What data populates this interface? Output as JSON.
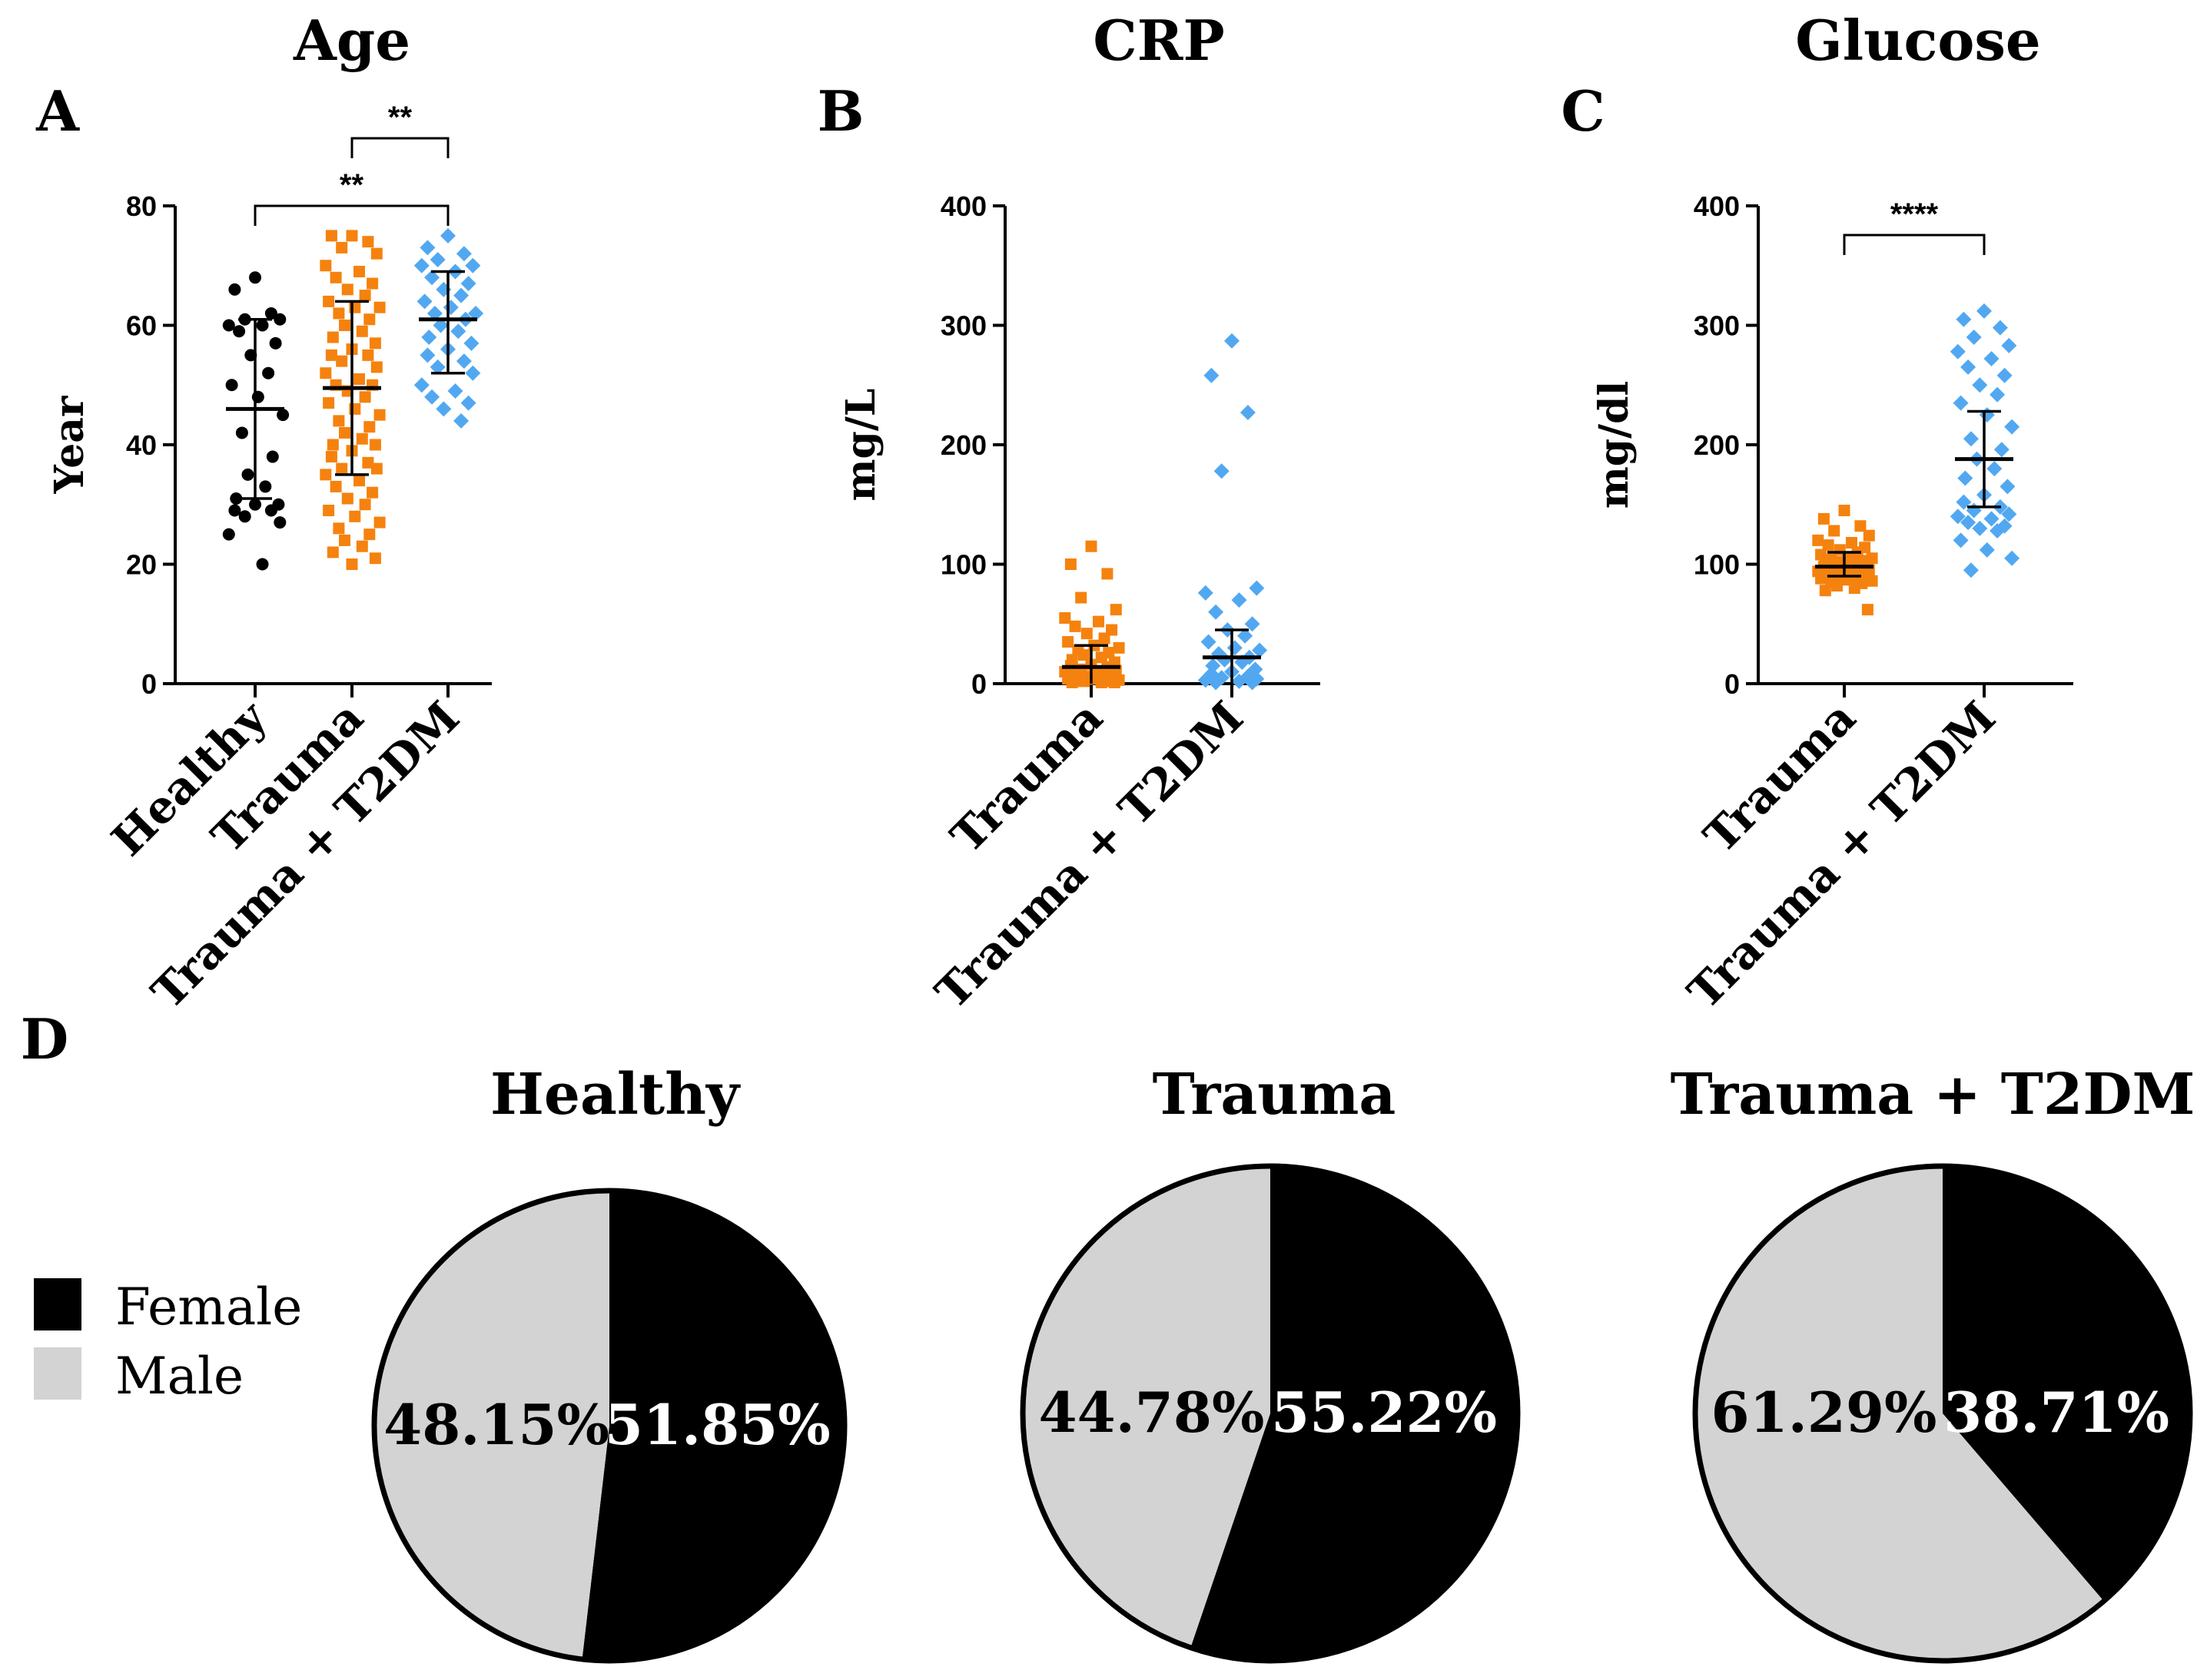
{
  "colors": {
    "healthy": "#000000",
    "trauma": "#f5820e",
    "t2dm": "#52a8f0",
    "female": "#000000",
    "male": "#d3d3d3"
  },
  "chart_data": [
    {
      "id": "A",
      "type": "scatter",
      "letter": "A",
      "title": "Age",
      "ylabel": "Year",
      "ylim": [
        0,
        80
      ],
      "yticks": [
        0,
        20,
        40,
        60,
        80
      ],
      "categories": [
        "Healthy",
        "Trauma",
        "Trauma + T2DM"
      ],
      "series": [
        {
          "name": "Healthy",
          "color_key": "healthy",
          "marker": "circle",
          "mean": 46,
          "sd_low": 31,
          "sd_high": 61,
          "values": [
            68,
            66,
            62,
            61,
            61,
            60,
            60,
            59,
            57,
            55,
            52,
            50,
            48,
            45,
            42,
            38,
            35,
            33,
            31,
            30,
            30,
            29,
            29,
            28,
            27,
            25,
            20
          ]
        },
        {
          "name": "Trauma",
          "color_key": "trauma",
          "marker": "square",
          "mean": 49.5,
          "sd_low": 35,
          "sd_high": 64,
          "values": [
            75,
            75,
            74,
            73,
            72,
            70,
            69,
            68,
            67,
            66,
            65,
            64,
            63,
            63,
            62,
            61,
            60,
            59,
            58,
            57,
            56,
            55,
            55,
            54,
            53,
            52,
            51,
            50,
            50,
            49,
            48,
            47,
            46,
            45,
            44,
            43,
            42,
            41,
            40,
            40,
            39,
            38,
            37,
            36,
            36,
            35,
            34,
            33,
            32,
            31,
            30,
            29,
            28,
            27,
            26,
            25,
            24,
            23,
            22,
            21,
            20
          ]
        },
        {
          "name": "Trauma + T2DM",
          "color_key": "t2dm",
          "marker": "diamond",
          "mean": 61,
          "sd_low": 52,
          "sd_high": 69,
          "values": [
            75,
            73,
            72,
            71,
            70,
            70,
            69,
            68,
            67,
            66,
            65,
            64,
            63,
            62,
            62,
            61,
            60,
            59,
            58,
            57,
            56,
            55,
            54,
            53,
            52,
            50,
            49,
            48,
            47,
            46,
            44
          ]
        }
      ],
      "significance": [
        {
          "from": 1,
          "to": 2,
          "label": "**",
          "level": "upper"
        },
        {
          "from": 0,
          "to": 2,
          "label": "**",
          "level": "lower"
        }
      ]
    },
    {
      "id": "B",
      "type": "scatter",
      "letter": "B",
      "title": "CRP",
      "ylabel": "mg/L",
      "ylim": [
        0,
        400
      ],
      "yticks": [
        0,
        100,
        200,
        300,
        400
      ],
      "categories": [
        "Trauma",
        "Trauma + T2DM"
      ],
      "series": [
        {
          "name": "Trauma",
          "color_key": "trauma",
          "marker": "square",
          "mean": 14,
          "sd_low": 0,
          "sd_high": 32,
          "values": [
            115,
            100,
            92,
            72,
            62,
            55,
            52,
            48,
            45,
            42,
            38,
            35,
            32,
            30,
            28,
            26,
            24,
            22,
            20,
            18,
            16,
            15,
            14,
            12,
            11,
            10,
            9,
            8,
            7,
            6,
            5,
            4,
            4,
            3,
            3,
            2,
            2,
            1,
            1,
            1
          ]
        },
        {
          "name": "Trauma + T2DM",
          "color_key": "t2dm",
          "marker": "diamond",
          "mean": 22,
          "sd_low": 0,
          "sd_high": 45,
          "values": [
            287,
            258,
            227,
            178,
            80,
            76,
            70,
            60,
            50,
            45,
            40,
            35,
            30,
            28,
            25,
            22,
            20,
            18,
            15,
            12,
            10,
            8,
            6,
            5,
            4,
            3,
            2,
            1,
            1
          ]
        }
      ],
      "significance": []
    },
    {
      "id": "C",
      "type": "scatter",
      "letter": "C",
      "title": "Glucose",
      "ylabel": "mg/dl",
      "ylim": [
        0,
        400
      ],
      "yticks": [
        0,
        100,
        200,
        300,
        400
      ],
      "categories": [
        "Trauma",
        "Trauma + T2DM"
      ],
      "series": [
        {
          "name": "Trauma",
          "color_key": "trauma",
          "marker": "square",
          "mean": 98,
          "sd_low": 90,
          "sd_high": 110,
          "values": [
            145,
            138,
            132,
            128,
            124,
            120,
            118,
            116,
            114,
            112,
            110,
            108,
            106,
            105,
            104,
            103,
            102,
            101,
            100,
            100,
            99,
            98,
            97,
            96,
            95,
            94,
            93,
            92,
            91,
            90,
            89,
            88,
            87,
            86,
            85,
            84,
            82,
            80,
            78,
            62
          ]
        },
        {
          "name": "Trauma + T2DM",
          "color_key": "t2dm",
          "marker": "diamond",
          "mean": 188,
          "sd_low": 148,
          "sd_high": 228,
          "values": [
            312,
            305,
            298,
            290,
            283,
            278,
            272,
            265,
            258,
            250,
            242,
            235,
            225,
            215,
            205,
            196,
            188,
            180,
            172,
            165,
            158,
            152,
            148,
            145,
            142,
            140,
            138,
            135,
            132,
            130,
            128,
            120,
            112,
            105,
            95
          ]
        }
      ],
      "significance": [
        {
          "from": 0,
          "to": 1,
          "label": "****",
          "level": "upper"
        }
      ]
    },
    {
      "id": "D",
      "type": "pie",
      "letter": "D",
      "legend": [
        {
          "label": "Female",
          "color_key": "female"
        },
        {
          "label": "Male",
          "color_key": "male"
        }
      ],
      "pies": [
        {
          "title": "Healthy",
          "female": 51.85,
          "male": 48.15,
          "female_label": "51.85%",
          "male_label": "48.15%"
        },
        {
          "title": "Trauma",
          "female": 55.22,
          "male": 44.78,
          "female_label": "55.22%",
          "male_label": "44.78%"
        },
        {
          "title": "Trauma + T2DM",
          "female": 38.71,
          "male": 61.29,
          "female_label": "38.71%",
          "male_label": "61.29%"
        }
      ]
    }
  ]
}
